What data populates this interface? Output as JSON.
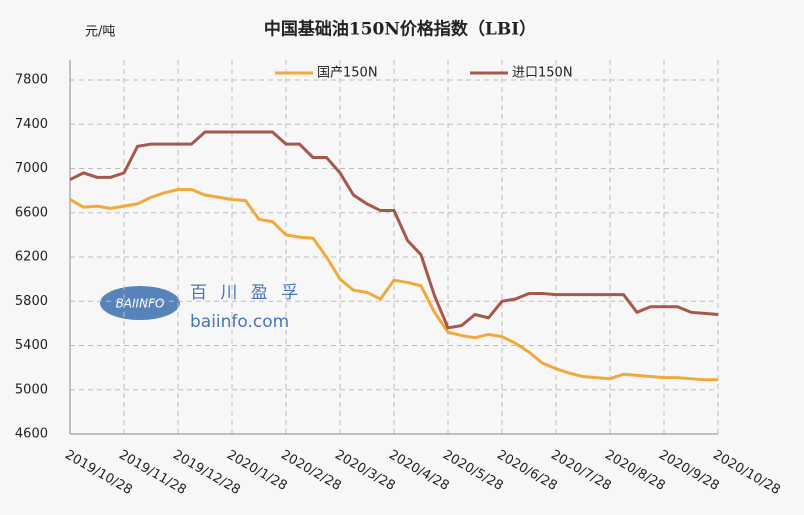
{
  "chart_data": {
    "type": "line",
    "title": "中国基础油150N价格指数（LBI）",
    "y_label": "元/吨",
    "categories": [
      "2019/10/28",
      null,
      null,
      null,
      "2019/11/28",
      null,
      null,
      null,
      "2019/12/28",
      null,
      null,
      null,
      "2020/1/28",
      null,
      null,
      null,
      "2020/2/28",
      null,
      null,
      null,
      "2020/3/28",
      null,
      null,
      null,
      "2020/4/28",
      null,
      null,
      null,
      "2020/5/28",
      null,
      null,
      null,
      "2020/6/28",
      null,
      null,
      null,
      "2020/7/28",
      null,
      null,
      null,
      "2020/8/28",
      null,
      null,
      null,
      "2020/9/28",
      null,
      null,
      null,
      "2020/10/28"
    ],
    "series": [
      {
        "name": "国产150N",
        "color": "#f2a93b",
        "values": [
          6720,
          6650,
          6660,
          6640,
          6660,
          6680,
          6740,
          6780,
          6810,
          6810,
          6760,
          6740,
          6720,
          6710,
          6540,
          6520,
          6400,
          6380,
          6370,
          6200,
          6000,
          5900,
          5880,
          5820,
          5990,
          5970,
          5940,
          5700,
          5520,
          5490,
          5470,
          5500,
          5480,
          5420,
          5340,
          5240,
          5190,
          5150,
          5120,
          5110,
          5100,
          5140,
          5130,
          5120,
          5110,
          5110,
          5100,
          5090,
          5090
        ]
      },
      {
        "name": "进口150N",
        "color": "#a5584b",
        "values": [
          6900,
          6960,
          6920,
          6920,
          6960,
          7200,
          7220,
          7220,
          7220,
          7220,
          7330,
          7330,
          7330,
          7330,
          7330,
          7330,
          7220,
          7220,
          7100,
          7100,
          6960,
          6760,
          6680,
          6620,
          6620,
          6350,
          6220,
          5850,
          5560,
          5580,
          5680,
          5650,
          5800,
          5820,
          5870,
          5870,
          5860,
          5860,
          5860,
          5860,
          5860,
          5860,
          5700,
          5750,
          5750,
          5750,
          5700,
          5690,
          5680
        ]
      }
    ],
    "ylim": [
      4600,
      7800
    ],
    "yticks": [
      4600,
      5000,
      5400,
      5800,
      6200,
      6600,
      7000,
      7400,
      7800
    ],
    "grid": true,
    "legend": "top",
    "watermark": {
      "logo": "BAIINFO",
      "brand": "百 川 盈 孚",
      "site": "baiinfo.com"
    }
  }
}
